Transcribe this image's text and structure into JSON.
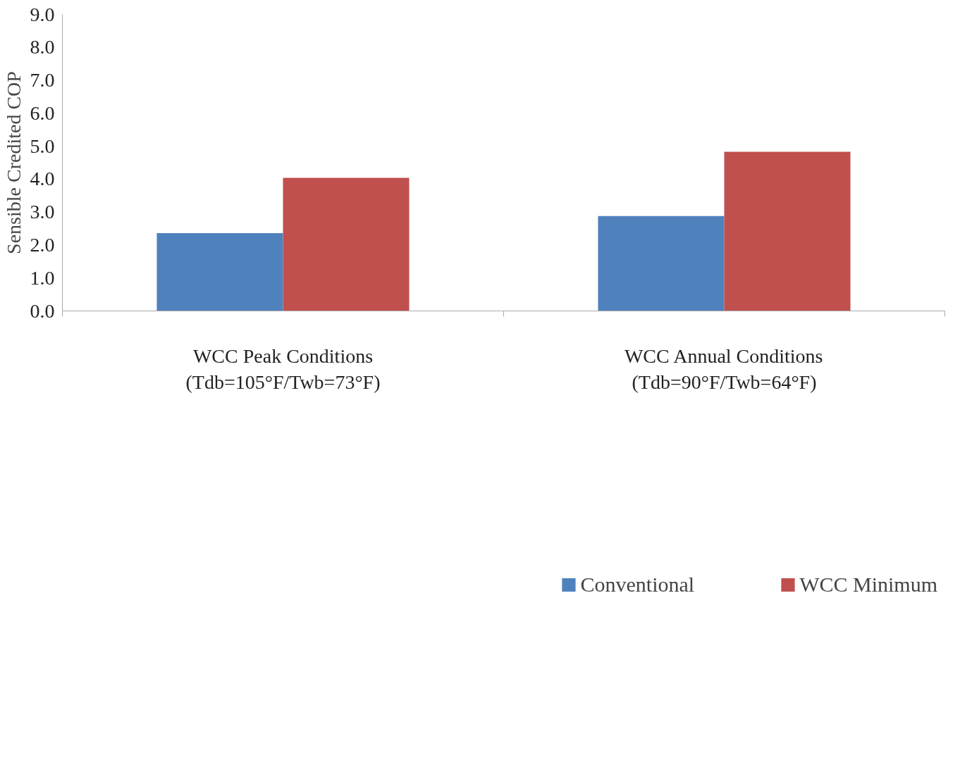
{
  "chart_data": {
    "type": "bar",
    "ylabel": "Sensible Credited COP",
    "categories": [
      "WCC Peak Conditions\n(Tdb=105°F/Twb=73°F)",
      "WCC Annual Conditions\n(Tdb=90°F/Twb=64°F)"
    ],
    "series": [
      {
        "name": "Conventional",
        "color": "#4f81bd",
        "values": [
          2.36,
          2.88
        ]
      },
      {
        "name": "WCC Minimum",
        "color": "#c0504d",
        "values": [
          4.04,
          4.83
        ]
      }
    ],
    "ylim": [
      0,
      9
    ],
    "yticks": [
      {
        "value": 0,
        "label": "0.0"
      },
      {
        "value": 1,
        "label": "1.0"
      },
      {
        "value": 2,
        "label": "2.0"
      },
      {
        "value": 3,
        "label": "3.0"
      },
      {
        "value": 4,
        "label": "4.0"
      },
      {
        "value": 5,
        "label": "5.0"
      },
      {
        "value": 6,
        "label": "6.0"
      },
      {
        "value": 7,
        "label": "7.0"
      },
      {
        "value": 8,
        "label": "8.0"
      },
      {
        "value": 9,
        "label": "9.0"
      }
    ],
    "grid": false,
    "legend": "bottom"
  }
}
